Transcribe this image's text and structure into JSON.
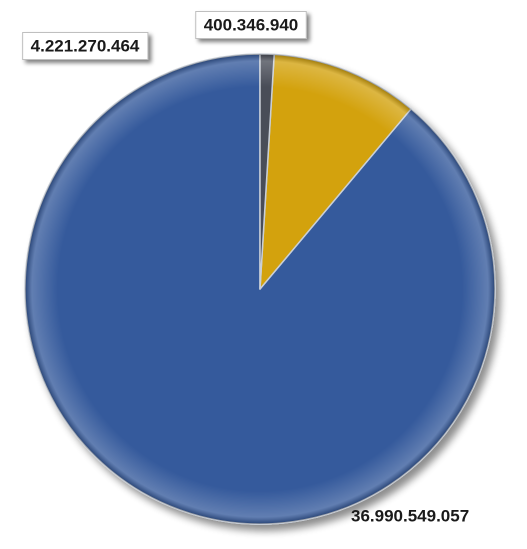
{
  "chart_data": {
    "type": "pie",
    "title": "",
    "slices": [
      {
        "label": "",
        "value": 36990549057,
        "display": "36.990.549.057",
        "color": "#345a9c"
      },
      {
        "label": "",
        "value": 4221270464,
        "display": "4.221.270.464",
        "color": "#d3a20a"
      },
      {
        "label": "",
        "value": 400346940,
        "display": "400.346.940",
        "color": "#4a4e58"
      }
    ],
    "legend": "none",
    "start_angle": "12 o'clock",
    "direction": "counter-clockwise"
  }
}
